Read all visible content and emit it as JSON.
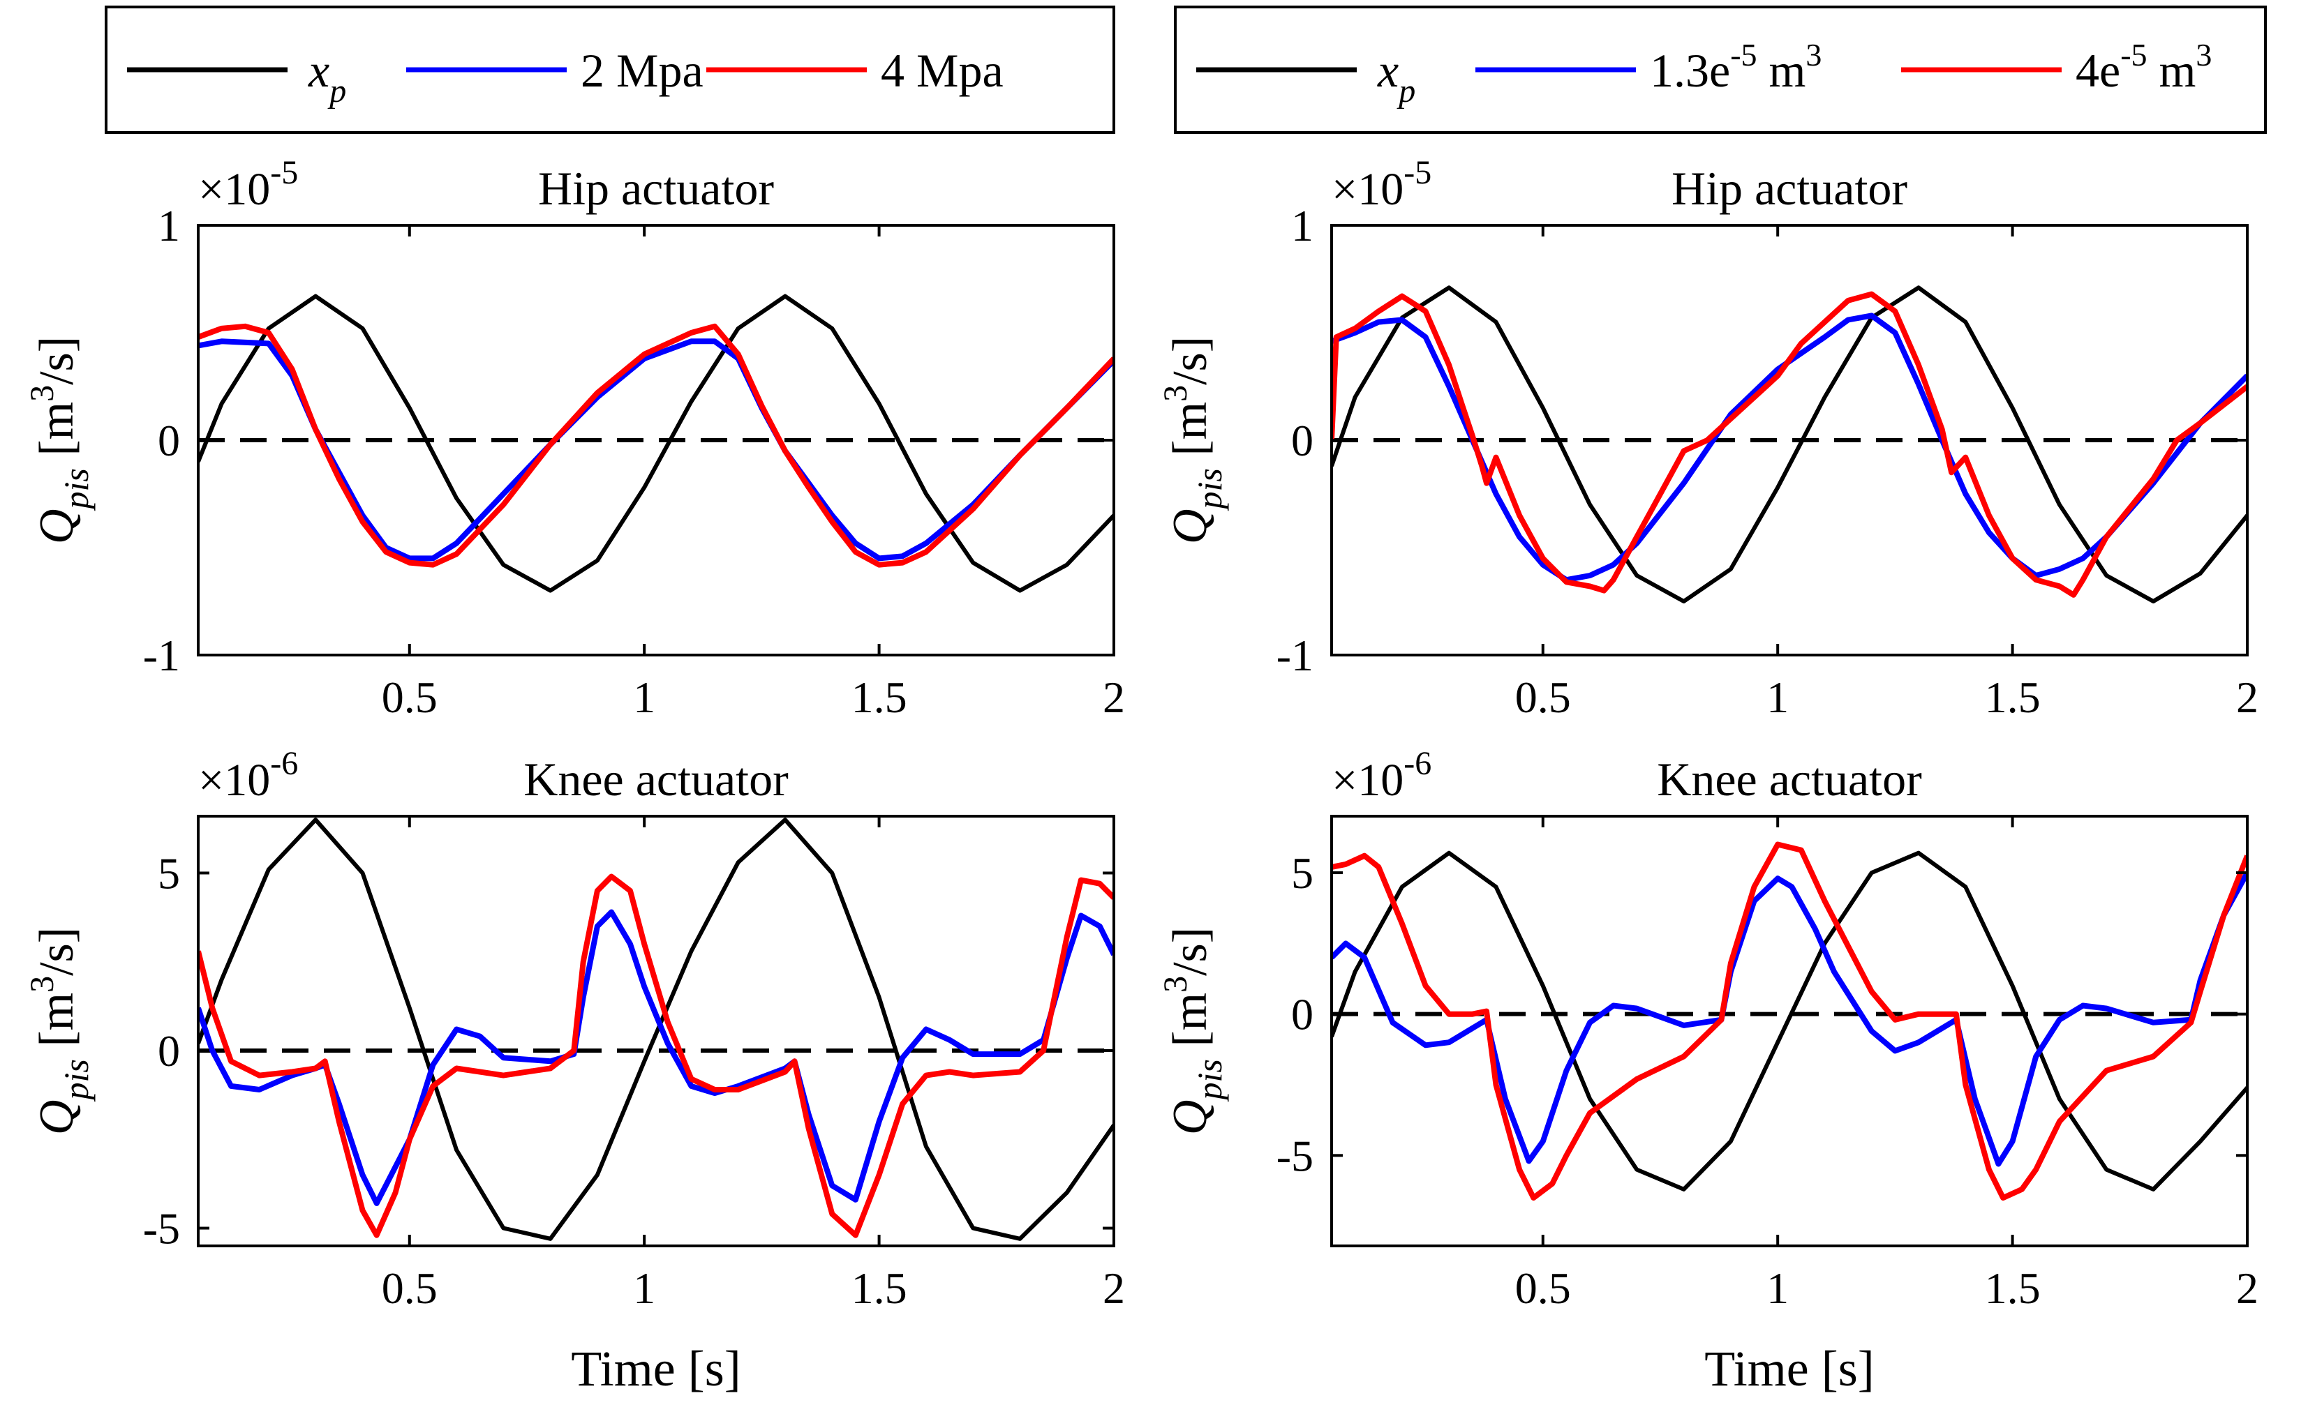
{
  "figure": {
    "xlabel": "Time [s]",
    "ylabel_main": "Q",
    "ylabel_sub": "pis",
    "ylabel_unit_pre": "[m",
    "ylabel_unit_sup": "3",
    "ylabel_unit_post": "/s]"
  },
  "legends": [
    {
      "entries": [
        {
          "label": "x",
          "sub": "p",
          "sup": "",
          "post": "",
          "color": "#000000",
          "italic": true
        },
        {
          "label": "2 Mpa",
          "sub": "",
          "sup": "",
          "post": "",
          "color": "#0000ff",
          "italic": false
        },
        {
          "label": "4 Mpa",
          "sub": "",
          "sup": "",
          "post": "",
          "color": "#ff0000",
          "italic": false
        }
      ]
    },
    {
      "entries": [
        {
          "label": "x",
          "sub": "p",
          "sup": "",
          "post": "",
          "color": "#000000",
          "italic": true
        },
        {
          "label": "1.3e",
          "sub": "",
          "sup": "-5",
          "post": " m",
          "sup2": "3",
          "color": "#0000ff",
          "italic": false
        },
        {
          "label": "4e",
          "sub": "",
          "sup": "-5",
          "post": " m",
          "sup2": "3",
          "color": "#ff0000",
          "italic": false
        }
      ]
    }
  ],
  "chart_data": [
    {
      "type": "line",
      "title": "Hip actuator",
      "xlabel": "",
      "ylabel": "Q_pis [m^3/s]",
      "xlim": [
        0.05,
        2.0
      ],
      "ylim": [
        -1.0,
        1.0
      ],
      "xticks": [
        0.5,
        1.0,
        1.5,
        2.0
      ],
      "xtick_labels": [
        "0.5",
        "1",
        "1.5",
        "2"
      ],
      "yticks": [
        -1,
        0,
        1
      ],
      "ytick_labels": [
        "-1",
        "0",
        "1"
      ],
      "exponent_base": "×10",
      "exponent": "-5",
      "zero_line": "dashed",
      "series": [
        {
          "name": "x_p",
          "color": "#000000",
          "x": [
            0.05,
            0.1,
            0.2,
            0.3,
            0.4,
            0.5,
            0.6,
            0.7,
            0.8,
            0.9,
            1.0,
            1.1,
            1.2,
            1.3,
            1.4,
            1.5,
            1.6,
            1.7,
            1.8,
            1.9,
            2.0
          ],
          "values": [
            -0.1,
            0.17,
            0.52,
            0.67,
            0.52,
            0.15,
            -0.27,
            -0.58,
            -0.7,
            -0.56,
            -0.22,
            0.18,
            0.52,
            0.67,
            0.52,
            0.17,
            -0.25,
            -0.57,
            -0.7,
            -0.58,
            -0.35
          ]
        },
        {
          "name": "2 Mpa",
          "color": "#0000ff",
          "x": [
            0.05,
            0.1,
            0.2,
            0.25,
            0.3,
            0.35,
            0.4,
            0.45,
            0.5,
            0.55,
            0.6,
            0.7,
            0.8,
            0.9,
            1.0,
            1.1,
            1.15,
            1.2,
            1.25,
            1.3,
            1.35,
            1.4,
            1.45,
            1.5,
            1.55,
            1.6,
            1.7,
            1.8,
            1.9,
            2.0
          ],
          "values": [
            0.44,
            0.46,
            0.45,
            0.3,
            0.05,
            -0.15,
            -0.35,
            -0.5,
            -0.55,
            -0.55,
            -0.48,
            -0.25,
            -0.02,
            0.2,
            0.38,
            0.46,
            0.46,
            0.38,
            0.15,
            -0.05,
            -0.2,
            -0.35,
            -0.48,
            -0.55,
            -0.54,
            -0.48,
            -0.3,
            -0.07,
            0.15,
            0.37
          ]
        },
        {
          "name": "4 Mpa",
          "color": "#ff0000",
          "x": [
            0.05,
            0.1,
            0.15,
            0.2,
            0.25,
            0.3,
            0.35,
            0.4,
            0.45,
            0.5,
            0.55,
            0.6,
            0.7,
            0.8,
            0.9,
            1.0,
            1.1,
            1.15,
            1.2,
            1.25,
            1.3,
            1.35,
            1.4,
            1.45,
            1.5,
            1.55,
            1.6,
            1.7,
            1.8,
            1.9,
            2.0
          ],
          "values": [
            0.48,
            0.52,
            0.53,
            0.5,
            0.33,
            0.05,
            -0.18,
            -0.38,
            -0.52,
            -0.57,
            -0.58,
            -0.53,
            -0.3,
            -0.02,
            0.22,
            0.4,
            0.5,
            0.53,
            0.4,
            0.16,
            -0.05,
            -0.22,
            -0.38,
            -0.52,
            -0.58,
            -0.57,
            -0.52,
            -0.32,
            -0.07,
            0.15,
            0.38
          ]
        }
      ]
    },
    {
      "type": "line",
      "title": "Knee actuator",
      "xlabel": "Time [s]",
      "ylabel": "Q_pis [m^3/s]",
      "xlim": [
        0.05,
        2.0
      ],
      "ylim": [
        -5.5,
        6.6
      ],
      "xticks": [
        0.5,
        1.0,
        1.5,
        2.0
      ],
      "xtick_labels": [
        "0.5",
        "1",
        "1.5",
        "2"
      ],
      "yticks": [
        -5,
        0,
        5
      ],
      "ytick_labels": [
        "-5",
        "0",
        "5"
      ],
      "exponent_base": "×10",
      "exponent": "-6",
      "zero_line": "dashed",
      "series": [
        {
          "name": "x_p",
          "color": "#000000",
          "x": [
            0.05,
            0.1,
            0.2,
            0.3,
            0.4,
            0.5,
            0.6,
            0.7,
            0.8,
            0.9,
            1.0,
            1.1,
            1.2,
            1.3,
            1.4,
            1.5,
            1.6,
            1.7,
            1.8,
            1.9,
            2.0
          ],
          "values": [
            0.2,
            2.0,
            5.1,
            6.5,
            5.0,
            1.2,
            -2.8,
            -5.0,
            -5.3,
            -3.5,
            -0.3,
            2.8,
            5.3,
            6.5,
            5.0,
            1.5,
            -2.7,
            -5.0,
            -5.3,
            -4.0,
            -2.1
          ]
        },
        {
          "name": "2 Mpa",
          "color": "#0000ff",
          "x": [
            0.05,
            0.08,
            0.12,
            0.18,
            0.25,
            0.3,
            0.32,
            0.35,
            0.4,
            0.43,
            0.5,
            0.55,
            0.6,
            0.65,
            0.7,
            0.8,
            0.85,
            0.87,
            0.9,
            0.93,
            0.97,
            1.0,
            1.05,
            1.1,
            1.15,
            1.2,
            1.3,
            1.32,
            1.35,
            1.4,
            1.45,
            1.5,
            1.55,
            1.6,
            1.65,
            1.7,
            1.8,
            1.85,
            1.9,
            1.93,
            1.97,
            2.0
          ],
          "values": [
            1.2,
            0.0,
            -1.0,
            -1.1,
            -0.7,
            -0.5,
            -0.4,
            -1.5,
            -3.5,
            -4.3,
            -2.5,
            -0.4,
            0.6,
            0.4,
            -0.2,
            -0.3,
            -0.1,
            1.5,
            3.5,
            3.9,
            3.0,
            1.8,
            0.2,
            -1.0,
            -1.2,
            -1.0,
            -0.5,
            -0.3,
            -1.8,
            -3.8,
            -4.2,
            -2.0,
            -0.2,
            0.6,
            0.3,
            -0.1,
            -0.1,
            0.3,
            2.6,
            3.8,
            3.5,
            2.7
          ]
        },
        {
          "name": "4 Mpa",
          "color": "#ff0000",
          "x": [
            0.05,
            0.08,
            0.12,
            0.18,
            0.25,
            0.3,
            0.32,
            0.35,
            0.4,
            0.43,
            0.47,
            0.5,
            0.55,
            0.6,
            0.65,
            0.7,
            0.8,
            0.85,
            0.87,
            0.9,
            0.93,
            0.97,
            1.0,
            1.05,
            1.1,
            1.15,
            1.2,
            1.3,
            1.32,
            1.35,
            1.4,
            1.45,
            1.5,
            1.55,
            1.6,
            1.65,
            1.7,
            1.8,
            1.85,
            1.9,
            1.93,
            1.97,
            2.0
          ],
          "values": [
            2.8,
            1.2,
            -0.3,
            -0.7,
            -0.6,
            -0.5,
            -0.3,
            -2.0,
            -4.5,
            -5.2,
            -4.0,
            -2.5,
            -1.0,
            -0.5,
            -0.6,
            -0.7,
            -0.5,
            0.0,
            2.5,
            4.5,
            4.9,
            4.5,
            3.0,
            0.8,
            -0.8,
            -1.1,
            -1.1,
            -0.6,
            -0.3,
            -2.2,
            -4.6,
            -5.2,
            -3.5,
            -1.5,
            -0.7,
            -0.6,
            -0.7,
            -0.6,
            0.0,
            3.2,
            4.8,
            4.7,
            4.3
          ]
        }
      ]
    },
    {
      "type": "line",
      "title": "Hip actuator",
      "xlabel": "",
      "ylabel": "Q_pis [m^3/s]",
      "xlim": [
        0.05,
        2.0
      ],
      "ylim": [
        -1.0,
        1.0
      ],
      "xticks": [
        0.5,
        1.0,
        1.5,
        2.0
      ],
      "xtick_labels": [
        "0.5",
        "1",
        "1.5",
        "2"
      ],
      "yticks": [
        -1,
        0,
        1
      ],
      "ytick_labels": [
        "-1",
        "0",
        "1"
      ],
      "exponent_base": "×10",
      "exponent": "-5",
      "zero_line": "dashed",
      "series": [
        {
          "name": "x_p",
          "color": "#000000",
          "x": [
            0.05,
            0.1,
            0.2,
            0.3,
            0.4,
            0.5,
            0.6,
            0.7,
            0.8,
            0.9,
            1.0,
            1.1,
            1.2,
            1.3,
            1.4,
            1.5,
            1.6,
            1.7,
            1.8,
            1.9,
            2.0
          ],
          "values": [
            -0.12,
            0.2,
            0.57,
            0.71,
            0.55,
            0.15,
            -0.3,
            -0.63,
            -0.75,
            -0.6,
            -0.22,
            0.2,
            0.57,
            0.71,
            0.55,
            0.15,
            -0.3,
            -0.63,
            -0.75,
            -0.62,
            -0.35
          ]
        },
        {
          "name": "1.3e-5 m3",
          "color": "#0000ff",
          "x": [
            0.05,
            0.1,
            0.15,
            0.2,
            0.25,
            0.3,
            0.35,
            0.4,
            0.45,
            0.5,
            0.55,
            0.6,
            0.65,
            0.7,
            0.8,
            0.9,
            1.0,
            1.1,
            1.15,
            1.2,
            1.25,
            1.3,
            1.35,
            1.4,
            1.45,
            1.5,
            1.55,
            1.6,
            1.65,
            1.7,
            1.8,
            1.9,
            2.0
          ],
          "values": [
            0.46,
            0.5,
            0.55,
            0.56,
            0.48,
            0.25,
            0.0,
            -0.25,
            -0.45,
            -0.58,
            -0.65,
            -0.63,
            -0.58,
            -0.48,
            -0.2,
            0.12,
            0.33,
            0.48,
            0.56,
            0.58,
            0.5,
            0.26,
            0.0,
            -0.25,
            -0.43,
            -0.55,
            -0.63,
            -0.6,
            -0.55,
            -0.45,
            -0.2,
            0.08,
            0.3
          ]
        },
        {
          "name": "4e-5 m3",
          "color": "#ff0000",
          "x": [
            0.05,
            0.06,
            0.1,
            0.15,
            0.2,
            0.25,
            0.3,
            0.33,
            0.35,
            0.37,
            0.38,
            0.4,
            0.45,
            0.5,
            0.55,
            0.6,
            0.63,
            0.65,
            0.7,
            0.75,
            0.8,
            0.85,
            0.9,
            1.0,
            1.05,
            1.1,
            1.15,
            1.2,
            1.25,
            1.3,
            1.35,
            1.37,
            1.4,
            1.45,
            1.5,
            1.55,
            1.6,
            1.63,
            1.65,
            1.7,
            1.8,
            1.85,
            1.9,
            2.0
          ],
          "values": [
            0.0,
            0.48,
            0.52,
            0.6,
            0.67,
            0.6,
            0.35,
            0.15,
            0.02,
            -0.12,
            -0.2,
            -0.08,
            -0.35,
            -0.55,
            -0.66,
            -0.68,
            -0.7,
            -0.65,
            -0.45,
            -0.25,
            -0.05,
            0.0,
            0.1,
            0.3,
            0.45,
            0.55,
            0.65,
            0.68,
            0.6,
            0.35,
            0.05,
            -0.15,
            -0.08,
            -0.35,
            -0.55,
            -0.65,
            -0.68,
            -0.72,
            -0.65,
            -0.45,
            -0.18,
            0.0,
            0.08,
            0.25
          ]
        }
      ]
    },
    {
      "type": "line",
      "title": "Knee actuator",
      "xlabel": "Time [s]",
      "ylabel": "Q_pis [m^3/s]",
      "xlim": [
        0.05,
        2.0
      ],
      "ylim": [
        -8.2,
        7.0
      ],
      "xticks": [
        0.5,
        1.0,
        1.5,
        2.0
      ],
      "xtick_labels": [
        "0.5",
        "1",
        "1.5",
        "2"
      ],
      "yticks": [
        -5,
        0,
        5
      ],
      "ytick_labels": [
        "-5",
        "0",
        "5"
      ],
      "exponent_base": "×10",
      "exponent": "-6",
      "zero_line": "dashed",
      "series": [
        {
          "name": "x_p",
          "color": "#000000",
          "x": [
            0.05,
            0.1,
            0.2,
            0.3,
            0.4,
            0.5,
            0.6,
            0.7,
            0.8,
            0.9,
            1.0,
            1.1,
            1.2,
            1.3,
            1.4,
            1.5,
            1.6,
            1.7,
            1.8,
            1.9,
            2.0
          ],
          "values": [
            -0.8,
            1.5,
            4.5,
            5.7,
            4.5,
            1.0,
            -3.0,
            -5.5,
            -6.2,
            -4.5,
            -1.0,
            2.5,
            5.0,
            5.7,
            4.5,
            1.0,
            -3.0,
            -5.5,
            -6.2,
            -4.5,
            -2.6
          ]
        },
        {
          "name": "1.3e-5 m3",
          "color": "#0000ff",
          "x": [
            0.05,
            0.08,
            0.12,
            0.18,
            0.25,
            0.3,
            0.35,
            0.38,
            0.42,
            0.47,
            0.5,
            0.55,
            0.6,
            0.65,
            0.7,
            0.8,
            0.88,
            0.9,
            0.95,
            1.0,
            1.03,
            1.08,
            1.12,
            1.2,
            1.25,
            1.3,
            1.35,
            1.38,
            1.42,
            1.47,
            1.5,
            1.55,
            1.6,
            1.65,
            1.7,
            1.8,
            1.88,
            1.9,
            1.95,
            2.0
          ],
          "values": [
            2.0,
            2.5,
            2.0,
            -0.3,
            -1.1,
            -1.0,
            -0.5,
            -0.2,
            -3.0,
            -5.2,
            -4.5,
            -2.0,
            -0.3,
            0.3,
            0.2,
            -0.4,
            -0.2,
            1.5,
            4.0,
            4.8,
            4.5,
            3.0,
            1.5,
            -0.6,
            -1.3,
            -1.0,
            -0.5,
            -0.2,
            -3.0,
            -5.3,
            -4.5,
            -1.5,
            -0.2,
            0.3,
            0.2,
            -0.3,
            -0.2,
            1.2,
            3.5,
            5.0
          ]
        },
        {
          "name": "4e-5 m3",
          "color": "#ff0000",
          "x": [
            0.05,
            0.08,
            0.12,
            0.15,
            0.2,
            0.25,
            0.3,
            0.35,
            0.38,
            0.4,
            0.45,
            0.48,
            0.52,
            0.55,
            0.6,
            0.7,
            0.8,
            0.88,
            0.9,
            0.95,
            1.0,
            1.05,
            1.1,
            1.2,
            1.25,
            1.3,
            1.35,
            1.38,
            1.4,
            1.45,
            1.48,
            1.52,
            1.55,
            1.6,
            1.7,
            1.8,
            1.88,
            1.9,
            1.95,
            2.0
          ],
          "values": [
            5.2,
            5.3,
            5.6,
            5.2,
            3.2,
            1.0,
            0.0,
            0.0,
            0.1,
            -2.5,
            -5.5,
            -6.5,
            -6.0,
            -5.0,
            -3.5,
            -2.3,
            -1.5,
            -0.2,
            1.8,
            4.5,
            6.0,
            5.8,
            4.0,
            0.8,
            -0.2,
            0.0,
            0.0,
            0.0,
            -2.5,
            -5.5,
            -6.5,
            -6.2,
            -5.5,
            -3.8,
            -2.0,
            -1.5,
            -0.3,
            0.8,
            3.5,
            5.6
          ]
        }
      ]
    }
  ]
}
